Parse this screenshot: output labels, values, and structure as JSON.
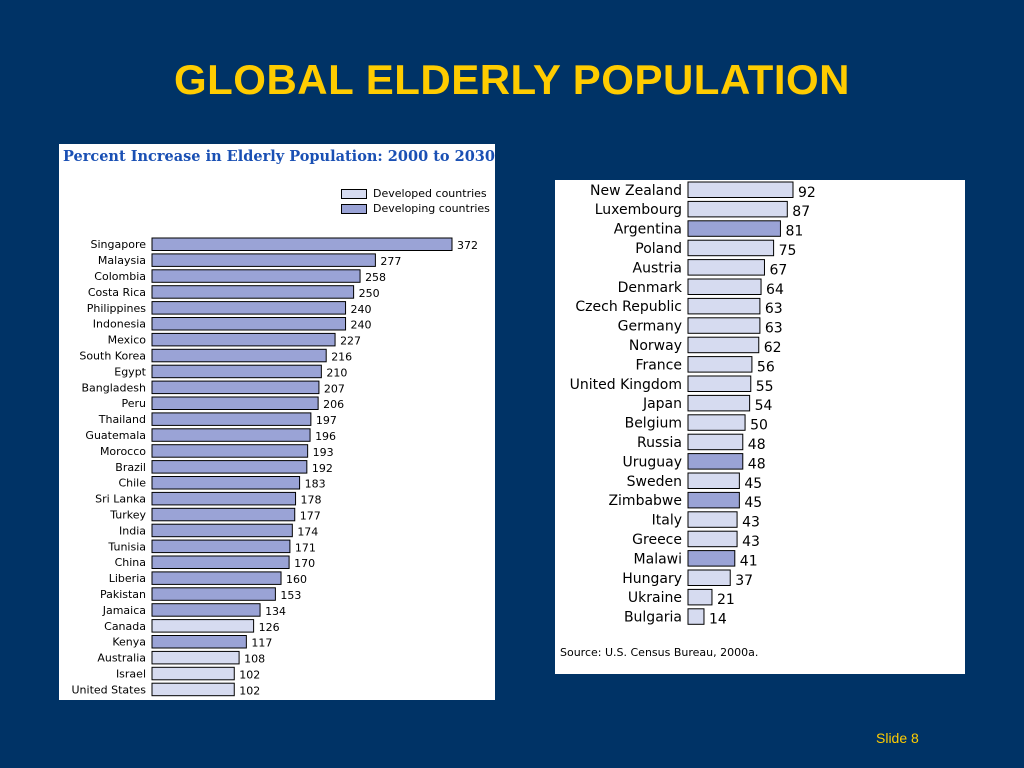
{
  "slide": {
    "title": "GLOBAL ELDERLY POPULATION",
    "slide_number": "Slide 8",
    "background_color": "#003366",
    "title_color": "#ffcc00"
  },
  "chart_data": [
    {
      "type": "bar",
      "orientation": "horizontal",
      "title": "Percent Increase in Elderly Population:  2000 to 2030",
      "legend": [
        {
          "label": "Developed countries",
          "color": "#d6dbf0"
        },
        {
          "label": "Developing countries",
          "color": "#9aa3d6"
        }
      ],
      "legend_position": "top-right",
      "grid": false,
      "xlim": [
        0,
        372
      ],
      "categories": [
        "Singapore",
        "Malaysia",
        "Colombia",
        "Costa Rica",
        "Philippines",
        "Indonesia",
        "Mexico",
        "South Korea",
        "Egypt",
        "Bangladesh",
        "Peru",
        "Thailand",
        "Guatemala",
        "Morocco",
        "Brazil",
        "Chile",
        "Sri Lanka",
        "Turkey",
        "India",
        "Tunisia",
        "China",
        "Liberia",
        "Pakistan",
        "Jamaica",
        "Canada",
        "Kenya",
        "Australia",
        "Israel",
        "United States"
      ],
      "values": [
        372,
        277,
        258,
        250,
        240,
        240,
        227,
        216,
        210,
        207,
        206,
        197,
        196,
        193,
        192,
        183,
        178,
        177,
        174,
        171,
        170,
        160,
        153,
        134,
        126,
        117,
        108,
        102,
        102
      ],
      "groups": [
        "Developing countries",
        "Developing countries",
        "Developing countries",
        "Developing countries",
        "Developing countries",
        "Developing countries",
        "Developing countries",
        "Developing countries",
        "Developing countries",
        "Developing countries",
        "Developing countries",
        "Developing countries",
        "Developing countries",
        "Developing countries",
        "Developing countries",
        "Developing countries",
        "Developing countries",
        "Developing countries",
        "Developing countries",
        "Developing countries",
        "Developing countries",
        "Developing countries",
        "Developing countries",
        "Developing countries",
        "Developed countries",
        "Developing countries",
        "Developed countries",
        "Developed countries",
        "Developed countries"
      ]
    },
    {
      "type": "bar",
      "orientation": "horizontal",
      "grid": false,
      "xlim": [
        0,
        92
      ],
      "categories": [
        "New Zealand",
        "Luxembourg",
        "Argentina",
        "Poland",
        "Austria",
        "Denmark",
        "Czech Republic",
        "Germany",
        "Norway",
        "France",
        "United Kingdom",
        "Japan",
        "Belgium",
        "Russia",
        "Uruguay",
        "Sweden",
        "Zimbabwe",
        "Italy",
        "Greece",
        "Malawi",
        "Hungary",
        "Ukraine",
        "Bulgaria"
      ],
      "values": [
        92,
        87,
        81,
        75,
        67,
        64,
        63,
        63,
        62,
        56,
        55,
        54,
        50,
        48,
        48,
        45,
        45,
        43,
        43,
        41,
        37,
        21,
        14
      ],
      "groups": [
        "Developed countries",
        "Developed countries",
        "Developing countries",
        "Developed countries",
        "Developed countries",
        "Developed countries",
        "Developed countries",
        "Developed countries",
        "Developed countries",
        "Developed countries",
        "Developed countries",
        "Developed countries",
        "Developed countries",
        "Developed countries",
        "Developing countries",
        "Developed countries",
        "Developing countries",
        "Developed countries",
        "Developed countries",
        "Developing countries",
        "Developed countries",
        "Developed countries",
        "Developed countries"
      ],
      "source": "Source:  U.S. Census Bureau, 2000a."
    }
  ]
}
